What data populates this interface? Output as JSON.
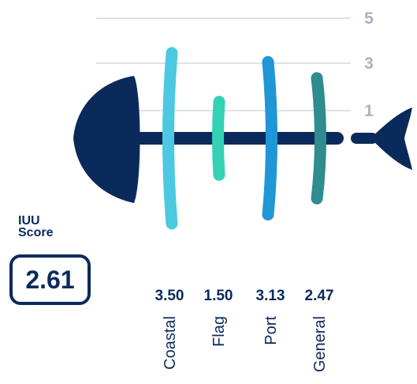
{
  "score": {
    "label_line1": "IUU",
    "label_line2": "Score",
    "value": "2.61"
  },
  "chart_data": {
    "type": "bar",
    "categories": [
      "Coastal",
      "Flag",
      "Port",
      "General"
    ],
    "values": [
      3.5,
      1.5,
      3.13,
      2.47
    ],
    "value_labels": [
      "3.50",
      "1.50",
      "3.13",
      "2.47"
    ],
    "colors": [
      "#4cc9e0",
      "#35d1b5",
      "#1f96d6",
      "#2f8c8f"
    ],
    "y_ticks": [
      1,
      3,
      5
    ],
    "ylim": [
      0,
      5
    ],
    "grid": true
  },
  "colors": {
    "navy": "#0b2a5c",
    "grid": "#dde3e8",
    "tick": "#a9b4c0"
  }
}
